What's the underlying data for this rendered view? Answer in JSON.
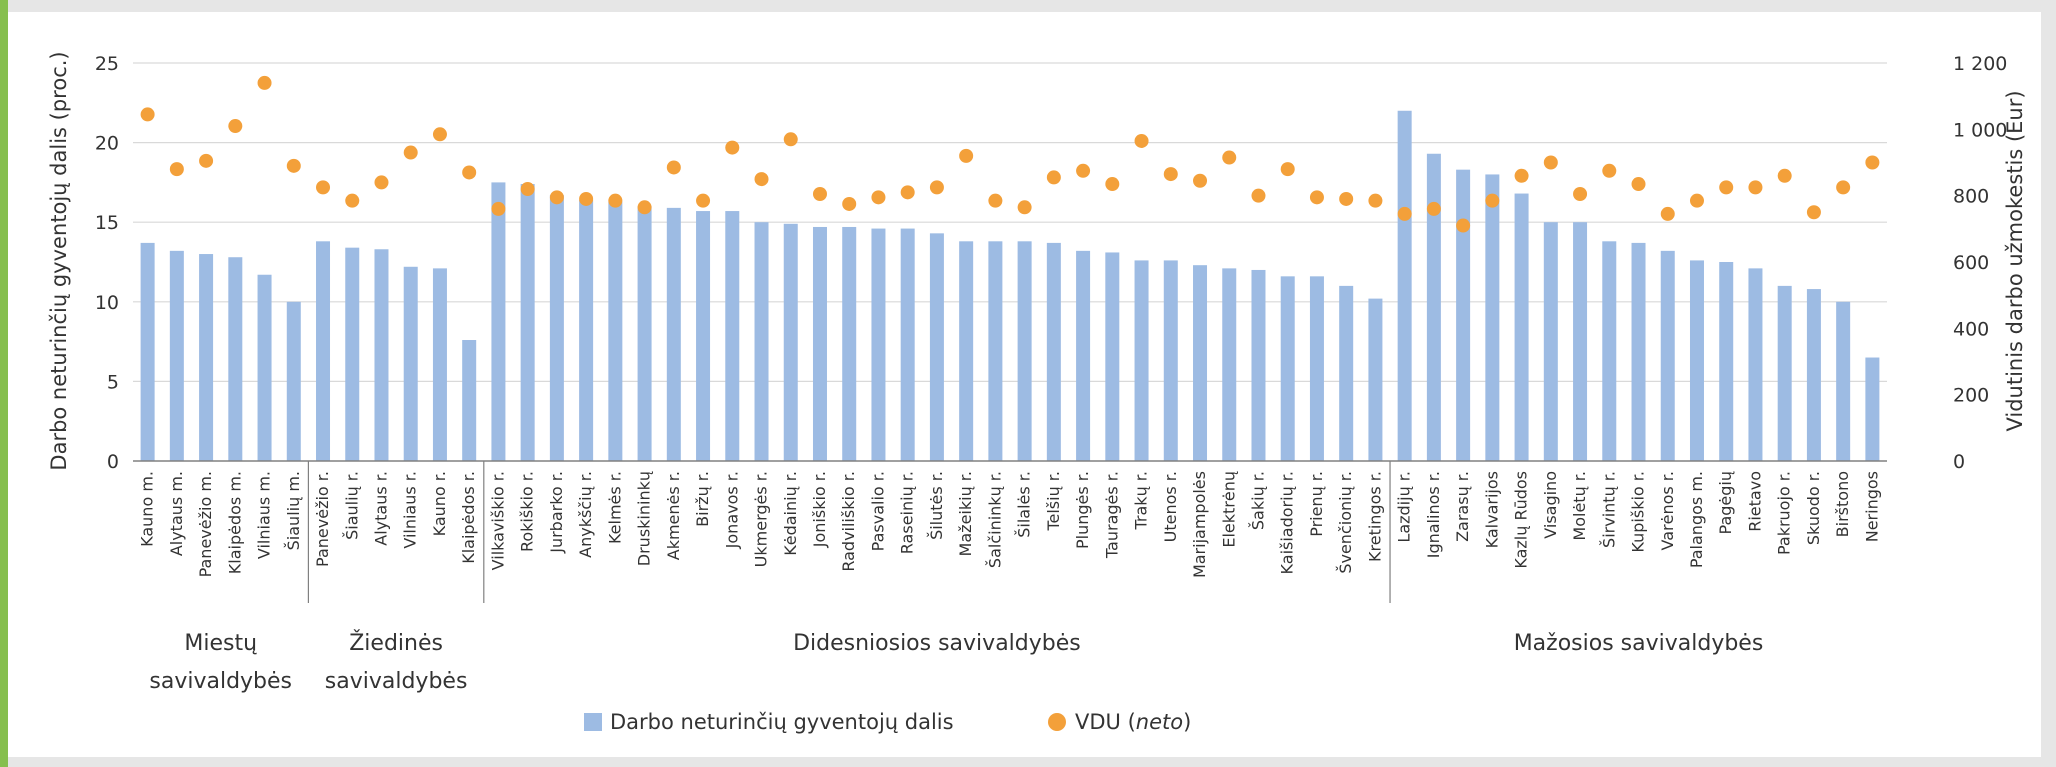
{
  "chart_data": {
    "type": "bar",
    "categories": [
      "Kauno m.",
      "Alytaus m.",
      "Panevėžio m.",
      "Klaipėdos m.",
      "Vilniaus m.",
      "Šiaulių m.",
      "Panevėžio r.",
      "Šiaulių r.",
      "Alytaus r.",
      "Vilniaus r.",
      "Kauno r.",
      "Klaipėdos r.",
      "Vilkaviškio r.",
      "Rokiškio r.",
      "Jurbarko r.",
      "Anykščių r.",
      "Kelmės r.",
      "Druskininkų",
      "Akmenės r.",
      "Biržų r.",
      "Jonavos r.",
      "Ukmergės r.",
      "Kėdainių r.",
      "Joniškio r.",
      "Radviliškio r.",
      "Pasvalio r.",
      "Raseinių r.",
      "Šilutės r.",
      "Mažeikių r.",
      "Šalčininkų r.",
      "Šilalės r.",
      "Telšių r.",
      "Plungės r.",
      "Tauragės r.",
      "Trakų r.",
      "Utenos r.",
      "Marijampolės",
      "Elektrėnų",
      "Šakių r.",
      "Kaišiadorių r.",
      "Prienų r.",
      "Švenčionių r.",
      "Kretingos r.",
      "Lazdijų r.",
      "Ignalinos r.",
      "Zarasų r.",
      "Kalvarijos",
      "Kazlų Rūdos",
      "Visagino",
      "Molėtų r.",
      "Širvintų r.",
      "Kupiškio r.",
      "Varėnos r.",
      "Palangos m.",
      "Pagėgių",
      "Rietavo",
      "Pakruojo r.",
      "Skuodo r.",
      "Birštono",
      "Neringos"
    ],
    "series": [
      {
        "name": "Darbo neturinčių gyventojų dalis",
        "axis": "left",
        "color": "#9dbbe3",
        "values": [
          13.7,
          13.2,
          13.0,
          12.8,
          11.7,
          10.0,
          13.8,
          13.4,
          13.3,
          12.2,
          12.1,
          7.6,
          17.5,
          17.4,
          16.7,
          16.4,
          16.3,
          16.0,
          15.9,
          15.7,
          15.7,
          15.0,
          14.9,
          14.7,
          14.7,
          14.6,
          14.6,
          14.3,
          13.8,
          13.8,
          13.8,
          13.7,
          13.2,
          13.1,
          12.6,
          12.6,
          12.3,
          12.1,
          12.0,
          11.6,
          11.6,
          11.0,
          10.2,
          22.0,
          19.3,
          18.3,
          18.0,
          16.8,
          15.0,
          15.0,
          13.8,
          13.7,
          13.2,
          12.6,
          12.5,
          12.1,
          11.0,
          10.8,
          10.0,
          6.5
        ]
      },
      {
        "name": "VDU",
        "name_suffix": "(neto)",
        "axis": "right",
        "color": "#f3a03a",
        "values": [
          1045,
          880,
          905,
          1010,
          1140,
          890,
          825,
          785,
          840,
          930,
          985,
          870,
          760,
          820,
          795,
          790,
          785,
          765,
          885,
          785,
          945,
          850,
          970,
          805,
          775,
          795,
          810,
          825,
          920,
          785,
          765,
          855,
          875,
          835,
          965,
          865,
          845,
          915,
          800,
          880,
          795,
          790,
          785,
          745,
          760,
          710,
          785,
          860,
          900,
          805,
          875,
          835,
          745,
          785,
          825,
          825,
          860,
          750,
          825,
          900
        ]
      }
    ],
    "ylabel": "Darbo neturinčių gyventojų dalis (proc.)",
    "y2label": "Vidutinis darbo užmokestis (Eur)",
    "ylim": [
      0,
      25
    ],
    "yticks": [
      "0",
      "5",
      "10",
      "15",
      "20",
      "25"
    ],
    "y2lim": [
      0,
      1200
    ],
    "y2ticks": [
      "0",
      "200",
      "400",
      "600",
      "800",
      "1 000",
      "1 200"
    ],
    "grid": true,
    "legend_position": "bottom",
    "groups": [
      {
        "lines": [
          "Miestų",
          "savivaldybės"
        ],
        "start": 0,
        "end": 5
      },
      {
        "lines": [
          "Žiedinės",
          "savivaldybės"
        ],
        "start": 6,
        "end": 11
      },
      {
        "lines": [
          "Didesniosios savivaldybės"
        ],
        "start": 12,
        "end": 42
      },
      {
        "lines": [
          "Mažosios savivaldybės"
        ],
        "start": 43,
        "end": 59
      }
    ]
  },
  "colors": {
    "frame": "#e6e6e6",
    "accent_green": "#86bf4e",
    "grid": "#d9d9d9",
    "axis": "#808080"
  }
}
